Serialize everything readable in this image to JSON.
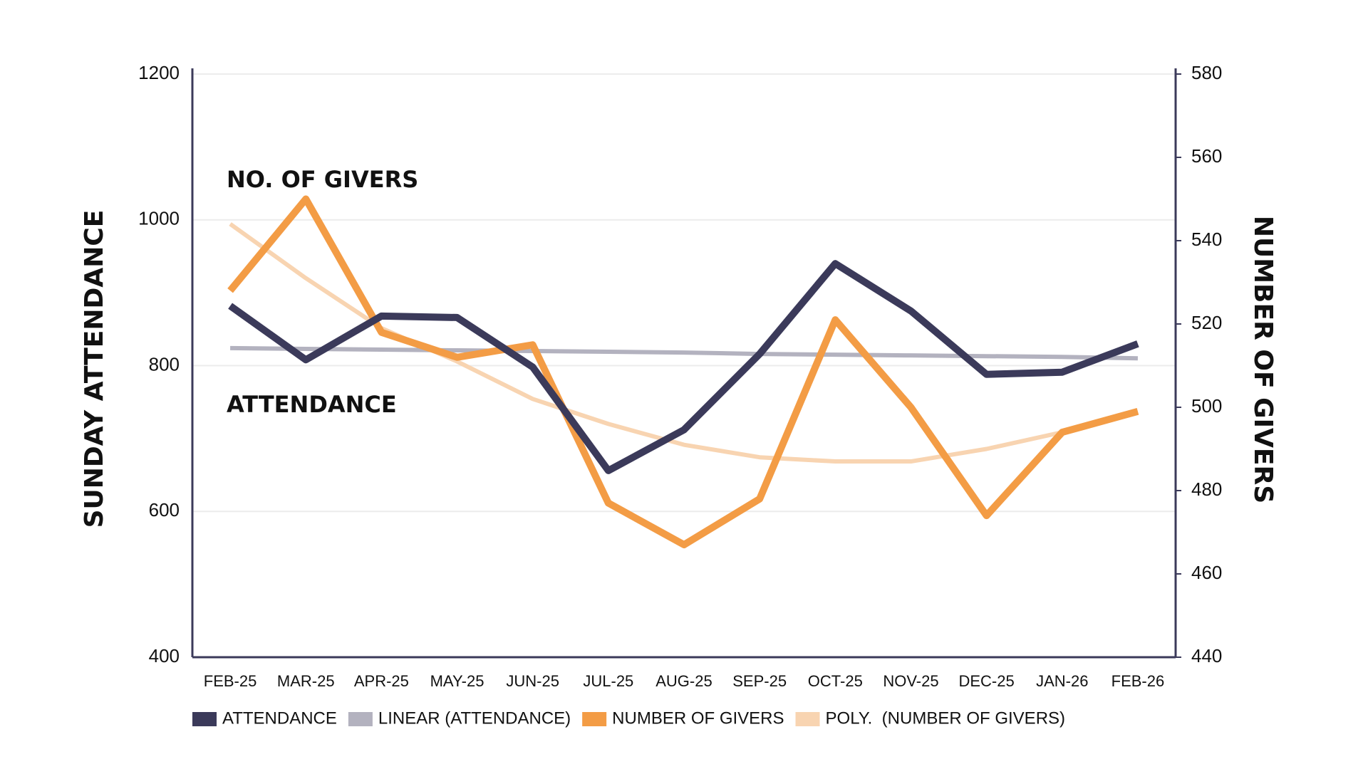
{
  "chart_data": {
    "type": "line",
    "categories": [
      "FEB-25",
      "MAR-25",
      "APR-25",
      "MAY-25",
      "JUN-25",
      "JUL-25",
      "AUG-25",
      "SEP-25",
      "OCT-25",
      "NOV-25",
      "DEC-25",
      "JAN-26",
      "FEB-26"
    ],
    "y_label": "SUNDAY ATTENDANCE",
    "y2_label": "NUMBER OF GIVERS",
    "ylim": [
      400,
      1200
    ],
    "yticks": [
      400,
      600,
      800,
      1000,
      1200
    ],
    "y2lim": [
      440,
      580
    ],
    "y2ticks": [
      440,
      460,
      480,
      500,
      520,
      540,
      560,
      580
    ],
    "grid": true,
    "legend": "bottom",
    "series": [
      {
        "name": "ATTENDANCE",
        "color": "#3b3a5a",
        "width": 10,
        "values": [
          882,
          808,
          868,
          866,
          798,
          656,
          712,
          816,
          940,
          875,
          788,
          791,
          830
        ]
      },
      {
        "name": "LINEAR (ATTENDANCE)",
        "color": "#b3b2bf",
        "width": 6,
        "values": [
          824,
          823,
          822,
          821,
          820,
          819,
          818,
          816,
          815,
          814,
          813,
          812,
          810
        ]
      },
      {
        "name": "NUMBER OF GIVERS",
        "color": "#f39c45",
        "width": 10,
        "axis": "y2",
        "values": [
          528,
          550,
          518,
          512,
          515,
          477,
          467,
          478,
          521,
          500,
          474,
          494,
          499
        ]
      },
      {
        "name": "POLY.  (NUMBER OF GIVERS)",
        "color": "#f8d4b1",
        "width": 6,
        "axis": "y2",
        "values": [
          544,
          531,
          519,
          511,
          502,
          496,
          491,
          488,
          487,
          487,
          490,
          494,
          499
        ]
      }
    ],
    "annotations": [
      {
        "text": "NO. OF GIVERS",
        "color": "#f39c45"
      },
      {
        "text": "ATTENDANCE",
        "color": "#3b3a5a"
      }
    ]
  }
}
